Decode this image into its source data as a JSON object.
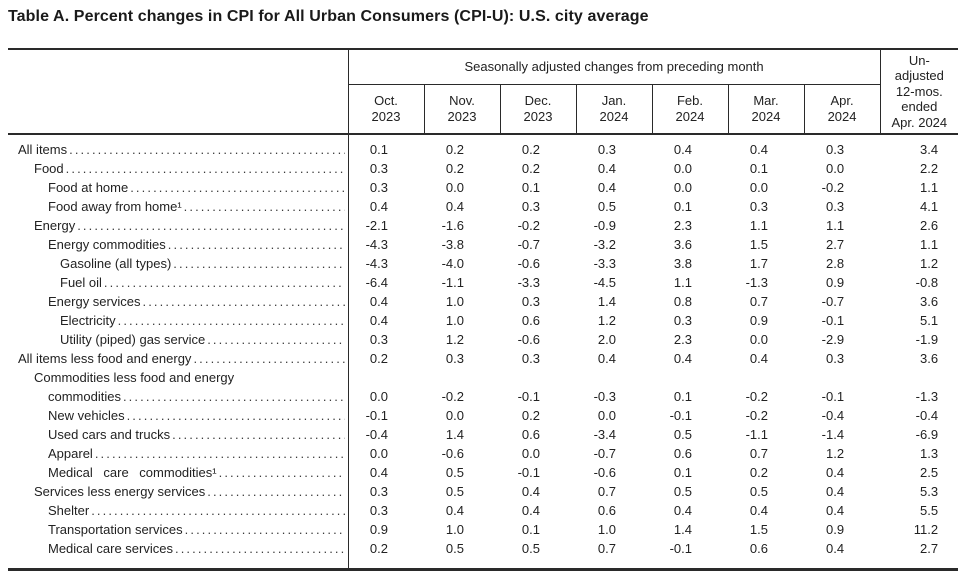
{
  "title": "Table A. Percent changes in CPI for All Urban Consumers (CPI-U): U.S. city average",
  "table": {
    "header": {
      "sa_group": "Seasonally adjusted changes from preceding month",
      "unadjusted": "Un-\nadjusted\n12-mos.\nended\nApr. 2024",
      "months": [
        "Oct.\n2023",
        "Nov.\n2023",
        "Dec.\n2023",
        "Jan.\n2024",
        "Feb.\n2024",
        "Mar.\n2024",
        "Apr.\n2024"
      ]
    },
    "rows": [
      {
        "label": "All items",
        "indent": 0,
        "values": [
          "0.1",
          "0.2",
          "0.2",
          "0.3",
          "0.4",
          "0.4",
          "0.3",
          "3.4"
        ]
      },
      {
        "label": "Food",
        "indent": 1,
        "values": [
          "0.3",
          "0.2",
          "0.2",
          "0.4",
          "0.0",
          "0.1",
          "0.0",
          "2.2"
        ]
      },
      {
        "label": "Food at home",
        "indent": 2,
        "values": [
          "0.3",
          "0.0",
          "0.1",
          "0.4",
          "0.0",
          "0.0",
          "-0.2",
          "1.1"
        ]
      },
      {
        "label": "Food away from home¹",
        "indent": 2,
        "values": [
          "0.4",
          "0.4",
          "0.3",
          "0.5",
          "0.1",
          "0.3",
          "0.3",
          "4.1"
        ]
      },
      {
        "label": "Energy",
        "indent": 1,
        "values": [
          "-2.1",
          "-1.6",
          "-0.2",
          "-0.9",
          "2.3",
          "1.1",
          "1.1",
          "2.6"
        ]
      },
      {
        "label": "Energy commodities",
        "indent": 2,
        "values": [
          "-4.3",
          "-3.8",
          "-0.7",
          "-3.2",
          "3.6",
          "1.5",
          "2.7",
          "1.1"
        ]
      },
      {
        "label": "Gasoline (all types)",
        "indent": 3,
        "values": [
          "-4.3",
          "-4.0",
          "-0.6",
          "-3.3",
          "3.8",
          "1.7",
          "2.8",
          "1.2"
        ]
      },
      {
        "label": "Fuel oil",
        "indent": 3,
        "values": [
          "-6.4",
          "-1.1",
          "-3.3",
          "-4.5",
          "1.1",
          "-1.3",
          "0.9",
          "-0.8"
        ]
      },
      {
        "label": "Energy services",
        "indent": 2,
        "values": [
          "0.4",
          "1.0",
          "0.3",
          "1.4",
          "0.8",
          "0.7",
          "-0.7",
          "3.6"
        ]
      },
      {
        "label": "Electricity",
        "indent": 3,
        "values": [
          "0.4",
          "1.0",
          "0.6",
          "1.2",
          "0.3",
          "0.9",
          "-0.1",
          "5.1"
        ]
      },
      {
        "label": "Utility (piped) gas service",
        "indent": 3,
        "values": [
          "0.3",
          "1.2",
          "-0.6",
          "2.0",
          "2.3",
          "0.0",
          "-2.9",
          "-1.9"
        ]
      },
      {
        "label": "All items less food and energy",
        "indent": 0,
        "values": [
          "0.2",
          "0.3",
          "0.3",
          "0.4",
          "0.4",
          "0.4",
          "0.3",
          "3.6"
        ]
      },
      {
        "label": "Commodities less food and energy",
        "label2": "commodities",
        "indent": 1,
        "values": [
          "0.0",
          "-0.2",
          "-0.1",
          "-0.3",
          "0.1",
          "-0.2",
          "-0.1",
          "-1.3"
        ]
      },
      {
        "label": "New vehicles",
        "indent": 2,
        "values": [
          "-0.1",
          "0.0",
          "0.2",
          "0.0",
          "-0.1",
          "-0.2",
          "-0.4",
          "-0.4"
        ]
      },
      {
        "label": "Used cars and trucks",
        "indent": 2,
        "values": [
          "-0.4",
          "1.4",
          "0.6",
          "-3.4",
          "0.5",
          "-1.1",
          "-1.4",
          "-6.9"
        ]
      },
      {
        "label": "Apparel",
        "indent": 2,
        "values": [
          "0.0",
          "-0.6",
          "0.0",
          "-0.7",
          "0.6",
          "0.7",
          "1.2",
          "1.3"
        ]
      },
      {
        "label": "Medical care commodities¹",
        "indent": 2,
        "spread": true,
        "values": [
          "0.4",
          "0.5",
          "-0.1",
          "-0.6",
          "0.1",
          "0.2",
          "0.4",
          "2.5"
        ]
      },
      {
        "label": "Services less energy services",
        "indent": 1,
        "values": [
          "0.3",
          "0.5",
          "0.4",
          "0.7",
          "0.5",
          "0.5",
          "0.4",
          "5.3"
        ]
      },
      {
        "label": "Shelter",
        "indent": 2,
        "values": [
          "0.3",
          "0.4",
          "0.4",
          "0.6",
          "0.4",
          "0.4",
          "0.4",
          "5.5"
        ]
      },
      {
        "label": "Transportation services",
        "indent": 2,
        "values": [
          "0.9",
          "1.0",
          "0.1",
          "1.0",
          "1.4",
          "1.5",
          "0.9",
          "11.2"
        ]
      },
      {
        "label": "Medical care services",
        "indent": 2,
        "values": [
          "0.2",
          "0.5",
          "0.5",
          "0.7",
          "-0.1",
          "0.6",
          "0.4",
          "2.7"
        ]
      }
    ]
  }
}
